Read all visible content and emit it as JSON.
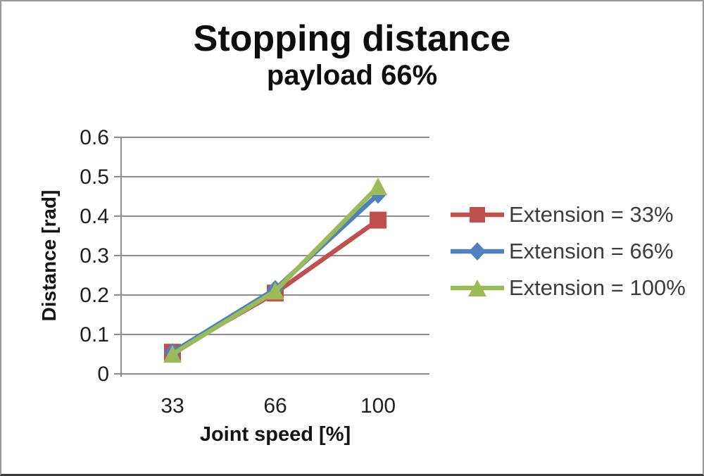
{
  "window": {
    "background": "#ffffff",
    "border_color": "#9a9a9a"
  },
  "chart_data": {
    "type": "line",
    "title": "Stopping distance",
    "subtitle": "payload 66%",
    "xlabel": "Joint speed [%]",
    "ylabel": "Distance [rad]",
    "categories": [
      "33",
      "66",
      "100"
    ],
    "x_values": [
      33,
      66,
      100
    ],
    "ylim": [
      0,
      0.6
    ],
    "y_ticks": [
      {
        "value": 0,
        "label": "0"
      },
      {
        "value": 0.1,
        "label": "0.1"
      },
      {
        "value": 0.2,
        "label": "0.2"
      },
      {
        "value": 0.3,
        "label": "0.3"
      },
      {
        "value": 0.4,
        "label": "0.4"
      },
      {
        "value": 0.5,
        "label": "0.5"
      },
      {
        "value": 0.6,
        "label": "0.6"
      }
    ],
    "grid": true,
    "legend_position": "right",
    "series": [
      {
        "name": "Extension = 33%",
        "color": "#C0504D",
        "marker": "square",
        "values": [
          0.055,
          0.205,
          0.39
        ]
      },
      {
        "name": "Extension = 66%",
        "color": "#4F81BD",
        "marker": "diamond",
        "values": [
          0.055,
          0.215,
          0.455
        ]
      },
      {
        "name": "Extension = 100%",
        "color": "#9BBB59",
        "marker": "triangle",
        "values": [
          0.05,
          0.21,
          0.475
        ]
      }
    ],
    "colors": {
      "gridline": "#8e8e8e",
      "axis": "#8e8e8e",
      "tick_text": "#1f1f1f",
      "title_text": "#0d0d0d",
      "legend_text": "#3d3d3d"
    }
  }
}
